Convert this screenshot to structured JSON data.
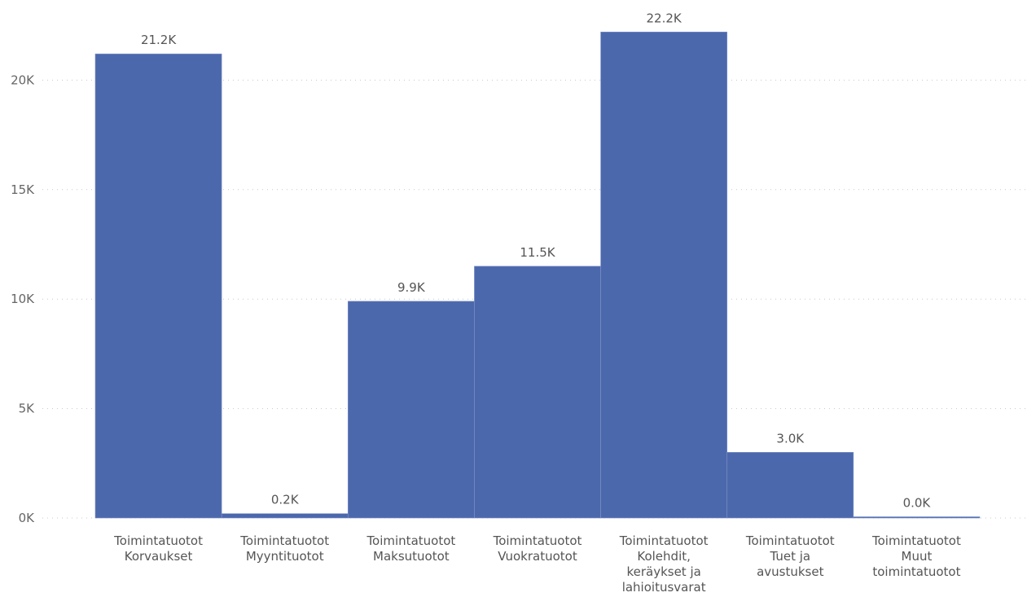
{
  "chart_data": {
    "type": "bar",
    "categories": [
      [
        "Toimintatuotot",
        "Korvaukset"
      ],
      [
        "Toimintatuotot",
        "Myyntituotot"
      ],
      [
        "Toimintatuotot",
        "Maksutuotot"
      ],
      [
        "Toimintatuotot",
        "Vuokratuotot"
      ],
      [
        "Toimintatuotot",
        "Kolehdit,",
        "keräykset ja",
        "lahioitusvarat"
      ],
      [
        "Toimintatuotot",
        "Tuet ja",
        "avustukset"
      ],
      [
        "Toimintatuotot",
        "Muut",
        "toimintatuotot"
      ]
    ],
    "values": [
      21200,
      200,
      9900,
      11500,
      22200,
      3000,
      20
    ],
    "data_labels": [
      "21.2K",
      "0.2K",
      "9.9K",
      "11.5K",
      "22.2K",
      "3.0K",
      "0.0K"
    ],
    "yticks": [
      0,
      5000,
      10000,
      15000,
      20000
    ],
    "ytick_labels": [
      "0K",
      "5K",
      "10K",
      "15K",
      "20K"
    ],
    "ylim": [
      0,
      23600
    ],
    "grid": true,
    "bar_color": "#4c68ad",
    "title": "",
    "xlabel": "",
    "ylabel": ""
  }
}
